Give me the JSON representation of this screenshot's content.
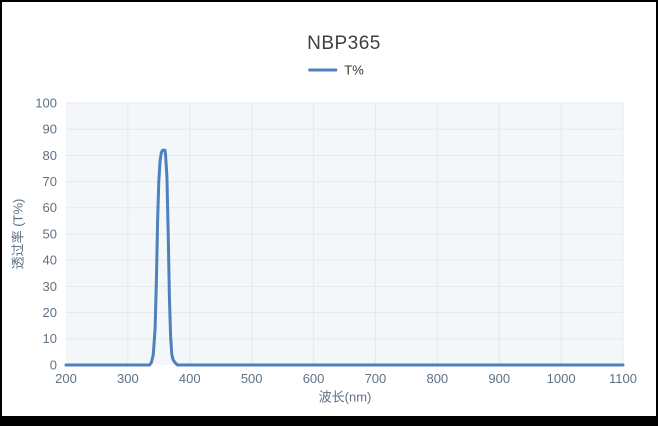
{
  "window": {
    "frame_color": "#000000"
  },
  "colors": {
    "accent_line": "#4e80bc",
    "plot_background": "#f3f7fa",
    "gridline": "#e4e9ef",
    "tick_text": "#5f7184",
    "title_text": "#3f3f3f",
    "legend_text": "#333333"
  },
  "chart_data": {
    "type": "line",
    "title": "NBP365",
    "xlabel": "波长(nm)",
    "ylabel": "透过率 (T%)",
    "xlim": [
      200,
      1100
    ],
    "ylim": [
      0,
      100
    ],
    "x_ticks": [
      200,
      300,
      400,
      500,
      600,
      700,
      800,
      900,
      1000,
      1100
    ],
    "y_ticks": [
      0,
      10,
      20,
      30,
      40,
      50,
      60,
      70,
      80,
      90,
      100
    ],
    "grid": true,
    "legend_position": "top-center",
    "legend": [
      {
        "label": "T%"
      }
    ],
    "series": [
      {
        "name": "T%",
        "points": [
          [
            200,
            0
          ],
          [
            250,
            0
          ],
          [
            300,
            0
          ],
          [
            320,
            0
          ],
          [
            330,
            0
          ],
          [
            335,
            0
          ],
          [
            338,
            1
          ],
          [
            341,
            4
          ],
          [
            344,
            14
          ],
          [
            346,
            32
          ],
          [
            348,
            55
          ],
          [
            350,
            70
          ],
          [
            352,
            78
          ],
          [
            354,
            81
          ],
          [
            356,
            82
          ],
          [
            358,
            82
          ],
          [
            360,
            82
          ],
          [
            361,
            80
          ],
          [
            363,
            72
          ],
          [
            365,
            52
          ],
          [
            367,
            26
          ],
          [
            369,
            11
          ],
          [
            371,
            4
          ],
          [
            373,
            2
          ],
          [
            376,
            1
          ],
          [
            380,
            0
          ],
          [
            390,
            0
          ],
          [
            400,
            0
          ],
          [
            450,
            0
          ],
          [
            500,
            0
          ],
          [
            550,
            0
          ],
          [
            600,
            0
          ],
          [
            650,
            0
          ],
          [
            700,
            0
          ],
          [
            750,
            0
          ],
          [
            800,
            0
          ],
          [
            850,
            0
          ],
          [
            900,
            0
          ],
          [
            950,
            0
          ],
          [
            1000,
            0
          ],
          [
            1050,
            0
          ],
          [
            1100,
            0
          ]
        ]
      }
    ]
  }
}
